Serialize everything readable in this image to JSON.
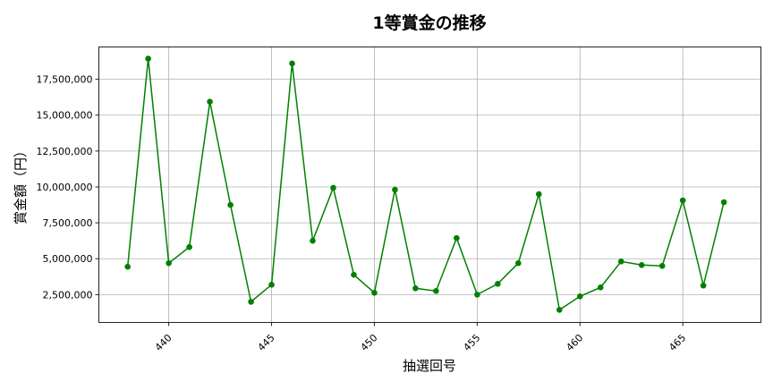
{
  "chart_data": {
    "type": "line",
    "title": "1等賞金の推移",
    "xlabel": "抽選回号",
    "ylabel": "賞金額（円）",
    "x": [
      438,
      439,
      440,
      441,
      442,
      443,
      444,
      445,
      446,
      447,
      448,
      449,
      450,
      451,
      452,
      453,
      454,
      455,
      456,
      457,
      458,
      459,
      460,
      461,
      462,
      463,
      464,
      465,
      466,
      467
    ],
    "values": [
      4440000,
      18940000,
      4690000,
      5810000,
      15940000,
      8750000,
      2000000,
      3190000,
      18600000,
      6250000,
      9940000,
      3880000,
      2630000,
      9810000,
      2940000,
      2750000,
      6440000,
      2500000,
      3250000,
      4690000,
      9500000,
      1440000,
      2380000,
      3000000,
      4810000,
      4560000,
      4500000,
      9060000,
      3130000,
      8940000
    ],
    "xticks": [
      "440",
      "445",
      "450",
      "455",
      "460",
      "465"
    ],
    "yticks": [
      "2,500,000",
      "5,000,000",
      "7,500,000",
      "10,000,000",
      "12,500,000",
      "15,000,000",
      "17,500,000"
    ],
    "xlim": [
      436.6,
      468.8
    ],
    "ylim": [
      560000,
      19750000
    ],
    "grid": true,
    "color": "#008000",
    "marker": "circle"
  }
}
